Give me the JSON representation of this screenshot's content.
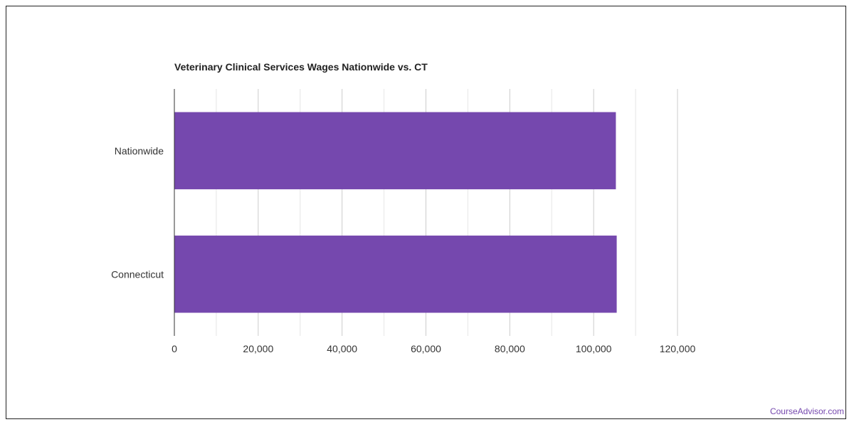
{
  "chart_data": {
    "type": "bar",
    "orientation": "horizontal",
    "title": "Veterinary Clinical Services Wages Nationwide vs. CT",
    "categories": [
      "Nationwide",
      "Connecticut"
    ],
    "values": [
      105300,
      105500
    ],
    "xlim": [
      0,
      120000
    ],
    "xticks": [
      0,
      20000,
      40000,
      60000,
      80000,
      100000,
      120000
    ],
    "xtick_labels": [
      "0",
      "20,000",
      "40,000",
      "60,000",
      "80,000",
      "100,000",
      "120,000"
    ],
    "grid": true,
    "colors": {
      "bar": "#7548ae",
      "grid": "#dddddd",
      "axis": "#333333",
      "text": "#333333"
    }
  },
  "watermark": {
    "text": "CourseAdvisor.com",
    "color": "#7548ae"
  }
}
